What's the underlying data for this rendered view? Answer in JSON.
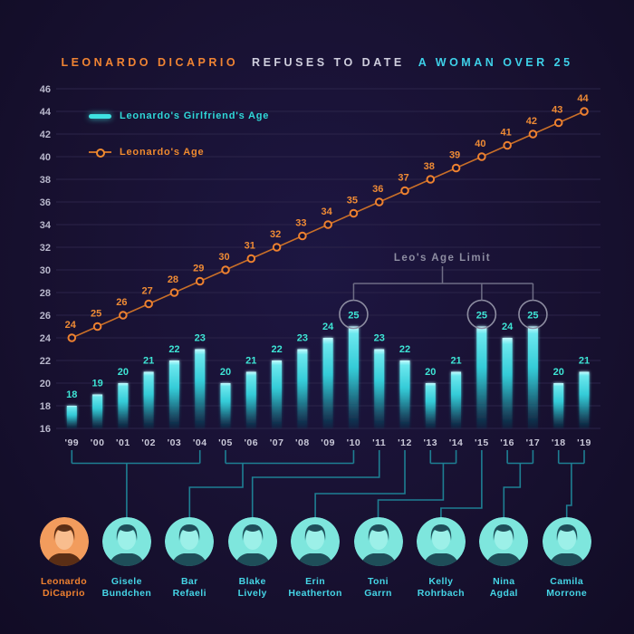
{
  "title": {
    "part1": "LEONARDO DICAPRIO",
    "part2": "REFUSES TO DATE",
    "part3": "A WOMAN OVER 25"
  },
  "legend": {
    "girlfriend": "Leonardo's Girlfriend's Age",
    "leo": "Leonardo's Age"
  },
  "chart_data": {
    "type": "combo",
    "categories": [
      "'99",
      "'00",
      "'01",
      "'02",
      "'03",
      "'04",
      "'05",
      "'06",
      "'07",
      "'08",
      "'09",
      "'10",
      "'11",
      "'12",
      "'13",
      "'14",
      "'15",
      "'16",
      "'17",
      "'18",
      "'19"
    ],
    "series": [
      {
        "name": "Leonardo's Girlfriend's Age",
        "type": "bar",
        "color": "#3fdbd9",
        "values": [
          18,
          19,
          20,
          21,
          22,
          23,
          20,
          21,
          22,
          23,
          24,
          25,
          23,
          22,
          20,
          21,
          25,
          24,
          25,
          20,
          21
        ]
      },
      {
        "name": "Leonardo's Age",
        "type": "line",
        "color": "#ef8230",
        "values": [
          24,
          25,
          26,
          27,
          28,
          29,
          30,
          31,
          32,
          33,
          34,
          35,
          36,
          37,
          38,
          39,
          40,
          41,
          42,
          43,
          44
        ]
      }
    ],
    "ylim": [
      16,
      46
    ],
    "ytick_step": 2,
    "grid": true,
    "legend_position": "top-left",
    "annotation": {
      "label": "Leo's Age Limit",
      "circled_categories": [
        "'10",
        "'15",
        "'17"
      ]
    }
  },
  "people": [
    {
      "first": "Leonardo",
      "last": "DiCaprio",
      "tint": "orange",
      "year_start": null,
      "year_end": null
    },
    {
      "first": "Gisele",
      "last": "Bundchen",
      "tint": "cyan",
      "year_start": "'99",
      "year_end": "'04"
    },
    {
      "first": "Bar",
      "last": "Refaeli",
      "tint": "cyan",
      "year_start": "'05",
      "year_end": "'10"
    },
    {
      "first": "Blake",
      "last": "Lively",
      "tint": "cyan",
      "year_start": "'11",
      "year_end": "'11"
    },
    {
      "first": "Erin",
      "last": "Heatherton",
      "tint": "cyan",
      "year_start": "'12",
      "year_end": "'12"
    },
    {
      "first": "Toni",
      "last": "Garrn",
      "tint": "cyan",
      "year_start": "'13",
      "year_end": "'14"
    },
    {
      "first": "Kelly",
      "last": "Rohrbach",
      "tint": "cyan",
      "year_start": "'15",
      "year_end": "'15"
    },
    {
      "first": "Nina",
      "last": "Agdal",
      "tint": "cyan",
      "year_start": "'16",
      "year_end": "'17"
    },
    {
      "first": "Camila",
      "last": "Morrone",
      "tint": "cyan",
      "year_start": "'18",
      "year_end": "'19"
    }
  ],
  "colors": {
    "background": "#181131",
    "grid": "#2b2449",
    "axis_text": "#b9b8cc",
    "year_text": "#c9c8d8",
    "bar_label": "#3ee6d6",
    "bar_top": "#c6fbff",
    "bar_mid": "#35ccd8",
    "bar_bottom": "#0e4a60",
    "line_stroke": "#c96f28",
    "marker_stroke": "#ee8130",
    "line_label": "#ef8b35",
    "annotation": "#8d8da1",
    "ring": "#8d8da1",
    "connector": "#1e7f93",
    "photo_cyan_light": "#7ee6dd",
    "photo_cyan_mid": "#9cf0e8",
    "photo_cyan_dark": "#143d4a",
    "photo_orange_light": "#f29c5d",
    "photo_orange_mid": "#f8bd8e",
    "photo_orange_dark": "#4a220d"
  }
}
